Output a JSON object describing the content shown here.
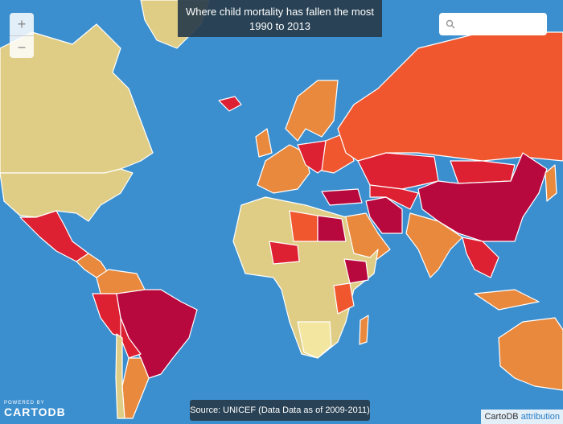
{
  "map": {
    "title": "Where child mortality has fallen the most",
    "subtitle": "1990 to 2013",
    "source": "Source: UNICEF (Data Data as of 2009-2011)"
  },
  "controls": {
    "zoom_in": "+",
    "zoom_out": "−"
  },
  "branding": {
    "powered_by": "POWERED BY",
    "logo": "CARTODB"
  },
  "attribution": {
    "provider": "CartoDB",
    "link": "attribution"
  }
}
